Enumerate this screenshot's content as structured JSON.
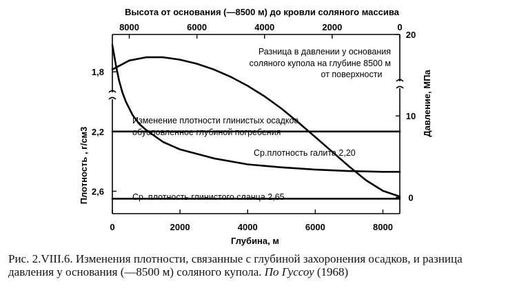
{
  "chart_data": {
    "type": "line",
    "title": "",
    "x": {
      "label": "Глубина, м",
      "range": [
        0,
        8500
      ],
      "ticks": [
        0,
        2000,
        4000,
        6000,
        8000
      ],
      "tick_labels": [
        "0",
        "2000",
        "4000",
        "6000",
        "8000"
      ]
    },
    "x_top": {
      "label": "Высота от основания (—8500 м) до кровли соляного массива",
      "range": [
        8500,
        0
      ],
      "ticks": [
        8000,
        6000,
        4000,
        2000,
        0
      ],
      "tick_labels": [
        "8000",
        "6000",
        "4000",
        "2000",
        "0"
      ]
    },
    "y_left": {
      "label": "Плотность , г/см3",
      "range": [
        1.55,
        2.75
      ],
      "inverted": true,
      "ticks": [
        1.8,
        2.2,
        2.6
      ],
      "tick_labels": [
        "1,8",
        "2,2",
        "2,6"
      ]
    },
    "y_right": {
      "label": "Давление, МПа",
      "range": [
        -2,
        20
      ],
      "ticks": [
        0,
        10,
        20
      ],
      "tick_labels": [
        "0",
        "10",
        "20"
      ]
    },
    "series": [
      {
        "axis": "right",
        "x_axis": "top",
        "x": [
          8500,
          8000,
          7500,
          7000,
          6500,
          6000,
          5500,
          5000,
          4500,
          4000,
          3500,
          3000,
          2500,
          2000,
          1500,
          1000,
          500,
          0
        ],
        "y": [
          15.7,
          16.8,
          17.2,
          17.2,
          16.9,
          16.4,
          15.7,
          14.8,
          13.7,
          12.4,
          10.9,
          9.2,
          7.4,
          5.6,
          3.8,
          2.1,
          0.8,
          0.1
        ]
      },
      {
        "axis": "left",
        "x": [
          0,
          100,
          200,
          300,
          400,
          600,
          800,
          1000,
          1500,
          2000,
          3000,
          4000,
          5000,
          6000,
          7000,
          8000,
          8500
        ],
        "y": [
          1.62,
          1.75,
          1.86,
          1.94,
          2.0,
          2.09,
          2.15,
          2.19,
          2.27,
          2.32,
          2.38,
          2.42,
          2.44,
          2.455,
          2.465,
          2.47,
          2.47
        ]
      },
      {
        "axis": "left",
        "x": [
          0,
          8500
        ],
        "y": [
          2.2,
          2.2
        ]
      },
      {
        "axis": "left",
        "x": [
          0,
          8500
        ],
        "y": [
          2.65,
          2.65
        ]
      }
    ],
    "annotations": [
      "Разница в давлении  у основания",
      "соляного купола на глубине 8500 м",
      "от поверхности",
      "Изменение плотности  глинистых осадкоа,",
      "обусловленное глубиной погребения",
      "Ср.плотность галита 2,20",
      "Ср. плотность глинистого сланца 2,65"
    ],
    "grid": false,
    "legend": "none"
  },
  "caption": {
    "main": "Рис. 2.VIII.6. Изменения плотности, связанные с глубиной захоронения осадков, и разница давления у основания (—8500 м) соляного купола.",
    "source_italic": "По Гуссоу",
    "year": "(1968)"
  }
}
